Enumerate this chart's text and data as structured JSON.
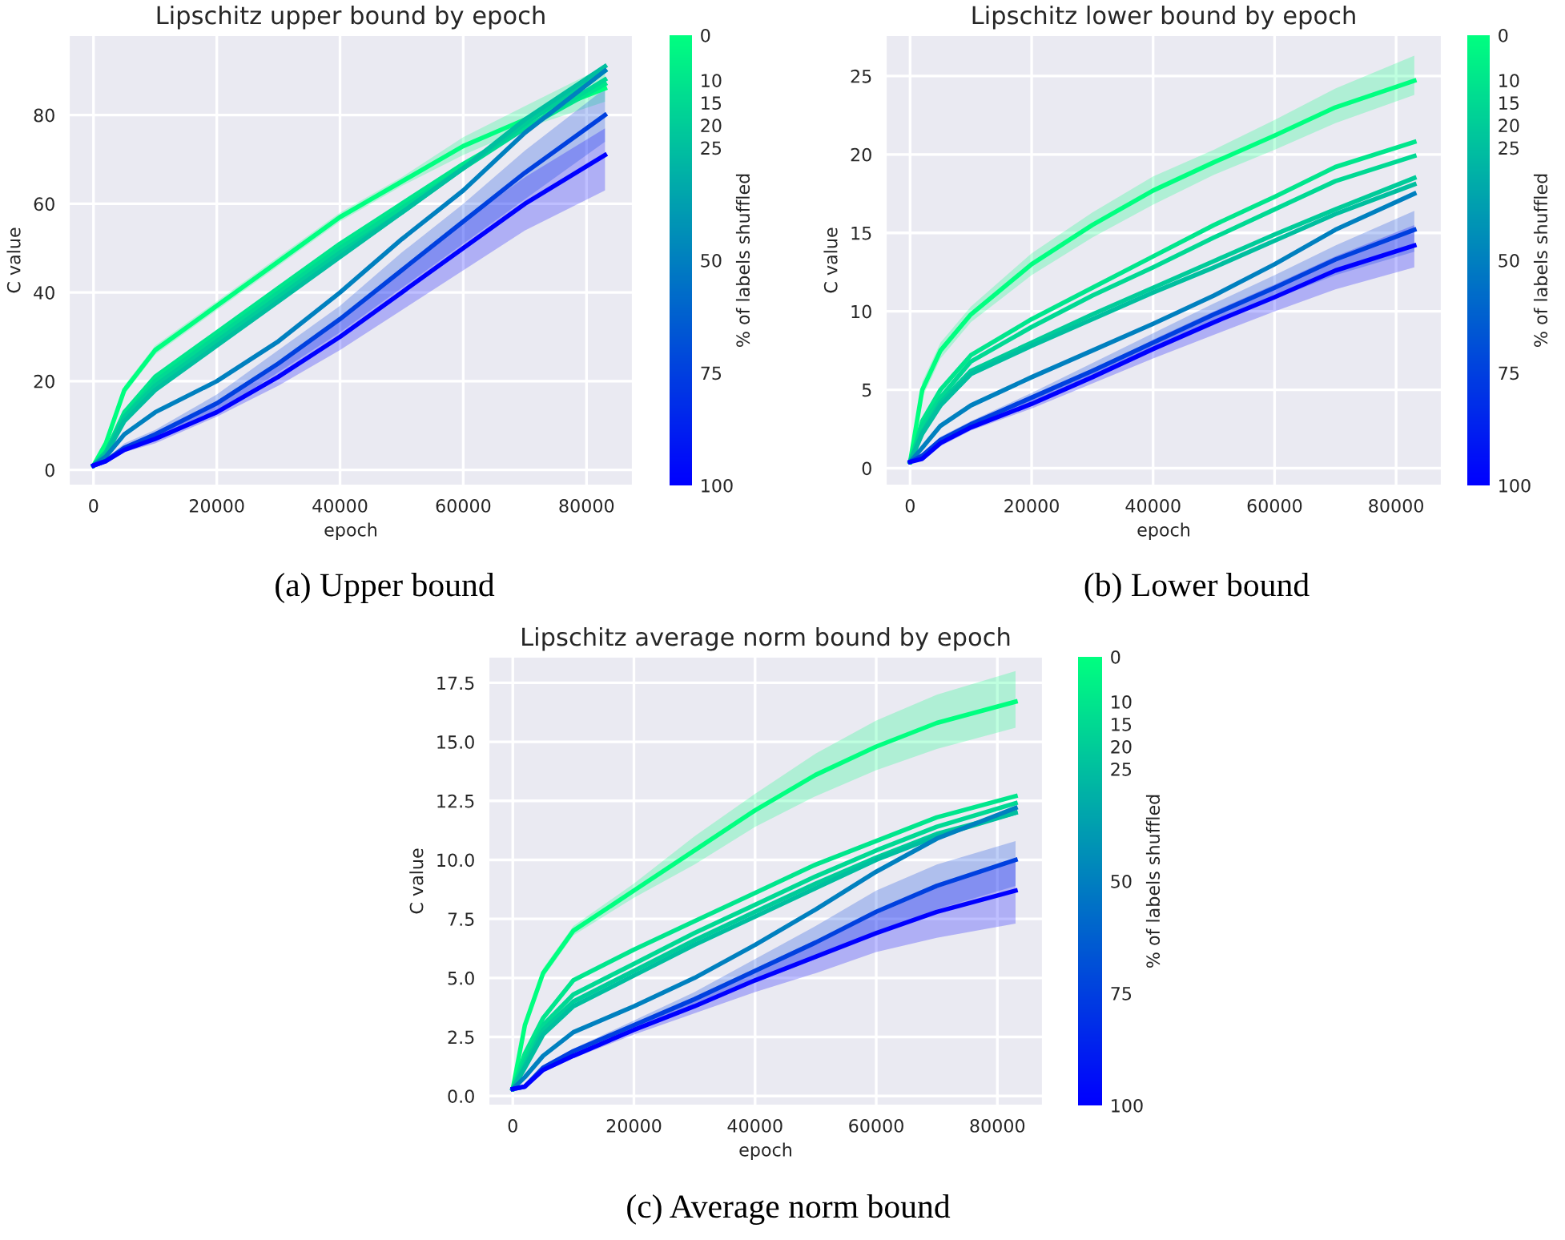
{
  "chart_data": [
    {
      "type": "line",
      "title": "Lipschitz upper bound by epoch",
      "xlabel": "epoch",
      "ylabel": "C value",
      "clabel": "% of labels shuffled",
      "clim": [
        0,
        100
      ],
      "cticks": [
        0,
        10,
        15,
        20,
        25,
        50,
        75,
        100
      ],
      "xlim": [
        -4000,
        87500
      ],
      "ylim": [
        -3.5,
        98
      ],
      "xticks": [
        0,
        20000,
        40000,
        60000,
        80000
      ],
      "yticks": [
        0,
        20,
        40,
        60,
        80
      ],
      "grid": true,
      "annotations": [
        "(a) Upper bound"
      ],
      "x": [
        0,
        2000,
        5000,
        10000,
        20000,
        30000,
        40000,
        50000,
        60000,
        70000,
        83000
      ],
      "series": [
        {
          "color": "#00ff80",
          "values": [
            1,
            6,
            18,
            27,
            37,
            47,
            57,
            65,
            73,
            79,
            86
          ],
          "lower": [
            1,
            5,
            17,
            26,
            36,
            46,
            56,
            64,
            71,
            77,
            83
          ],
          "upper": [
            1,
            7,
            19,
            28,
            38,
            48,
            58,
            66,
            75,
            82,
            91
          ]
        },
        {
          "color": "#00e68c",
          "values": [
            1,
            4,
            13,
            21,
            31,
            41,
            51,
            60,
            69,
            77,
            87
          ]
        },
        {
          "color": "#00d993",
          "values": [
            1,
            4,
            12,
            20,
            30,
            40,
            50,
            59,
            68,
            77,
            88
          ]
        },
        {
          "color": "#00cc99",
          "values": [
            1,
            4,
            12,
            19,
            29,
            39,
            49,
            58,
            68,
            78,
            90
          ]
        },
        {
          "color": "#00bf9f",
          "values": [
            1,
            3.5,
            11,
            18,
            28,
            38,
            48,
            58,
            68,
            79,
            91
          ]
        },
        {
          "color": "#0080bf",
          "values": [
            1,
            3,
            8,
            13,
            20,
            29,
            40,
            52,
            63,
            76,
            90
          ]
        },
        {
          "color": "#0040df",
          "values": [
            1,
            2,
            5,
            8,
            15,
            24,
            34,
            45,
            56,
            67,
            80
          ],
          "lower": [
            1,
            1.5,
            4.5,
            7,
            13,
            22,
            31,
            41,
            51,
            61,
            74
          ],
          "upper": [
            1,
            2.5,
            6,
            9,
            17,
            27,
            37,
            49,
            60,
            72,
            86
          ]
        },
        {
          "color": "#0000ff",
          "values": [
            1,
            2,
            4.5,
            7,
            13,
            21,
            30,
            40,
            50,
            60,
            71
          ],
          "lower": [
            1,
            1.5,
            4,
            6,
            12,
            19,
            27,
            36,
            45,
            54,
            63
          ],
          "upper": [
            1,
            2.5,
            5.5,
            8.5,
            15,
            24,
            34,
            45,
            56,
            66,
            77
          ]
        }
      ]
    },
    {
      "type": "line",
      "title": "Lipschitz lower bound by epoch",
      "xlabel": "epoch",
      "ylabel": "C value",
      "clabel": "% of labels shuffled",
      "clim": [
        0,
        100
      ],
      "cticks": [
        0,
        10,
        15,
        20,
        25,
        50,
        75,
        100
      ],
      "xlim": [
        -4000,
        87500
      ],
      "ylim": [
        -1.1,
        27.6
      ],
      "xticks": [
        0,
        20000,
        40000,
        60000,
        80000
      ],
      "yticks": [
        0,
        5,
        10,
        15,
        20,
        25
      ],
      "grid": true,
      "annotations": [
        "(b) Lower bound"
      ],
      "x": [
        0,
        2000,
        5000,
        10000,
        20000,
        30000,
        40000,
        50000,
        60000,
        70000,
        83000
      ],
      "series": [
        {
          "color": "#00ff80",
          "values": [
            0.4,
            5,
            7.5,
            9.8,
            13,
            15.5,
            17.7,
            19.5,
            21.2,
            23,
            24.7
          ],
          "lower": [
            0.4,
            4.5,
            7,
            9.3,
            12.3,
            14.7,
            16.8,
            18.7,
            20.3,
            22,
            23.8
          ],
          "upper": [
            0.4,
            5.5,
            8,
            10.3,
            13.7,
            16.3,
            18.6,
            20.3,
            22.2,
            24.2,
            26.3
          ]
        },
        {
          "color": "#00e68c",
          "values": [
            0.4,
            3,
            5,
            7.2,
            9.5,
            11.5,
            13.5,
            15.5,
            17.3,
            19.2,
            20.8
          ]
        },
        {
          "color": "#00d993",
          "values": [
            0.4,
            2.7,
            4.5,
            6.8,
            9,
            11,
            12.8,
            14.7,
            16.5,
            18.3,
            19.9
          ]
        },
        {
          "color": "#00cc99",
          "values": [
            0.4,
            2.3,
            4.2,
            6.2,
            8,
            9.8,
            11.5,
            13.2,
            14.9,
            16.5,
            18.5
          ]
        },
        {
          "color": "#00bf9f",
          "values": [
            0.4,
            2.2,
            4,
            6,
            7.8,
            9.5,
            11.2,
            12.8,
            14.5,
            16.2,
            18.1
          ]
        },
        {
          "color": "#0080bf",
          "values": [
            0.4,
            1.3,
            2.7,
            4,
            5.8,
            7.5,
            9.2,
            11,
            13,
            15.2,
            17.5
          ]
        },
        {
          "color": "#0040df",
          "values": [
            0.4,
            0.8,
            1.8,
            2.8,
            4.5,
            6.2,
            8,
            9.8,
            11.5,
            13.3,
            15.2
          ],
          "lower": [
            0.4,
            0.7,
            1.6,
            2.6,
            4.2,
            5.8,
            7.5,
            9.2,
            10.8,
            12.3,
            13.8
          ],
          "upper": [
            0.4,
            0.9,
            2,
            3,
            4.8,
            6.7,
            8.6,
            10.5,
            12.3,
            14.2,
            16.4
          ]
        },
        {
          "color": "#0000ff",
          "values": [
            0.4,
            0.6,
            1.6,
            2.6,
            4.1,
            5.8,
            7.6,
            9.3,
            10.9,
            12.6,
            14.2
          ],
          "lower": [
            0.4,
            0.5,
            1.4,
            2.4,
            3.8,
            5.4,
            7,
            8.5,
            10,
            11.4,
            12.8
          ],
          "upper": [
            0.4,
            0.7,
            1.8,
            2.8,
            4.4,
            6.2,
            8.2,
            10,
            11.7,
            13.5,
            15.5
          ]
        }
      ]
    },
    {
      "type": "line",
      "title": "Lipschitz average norm bound by epoch",
      "xlabel": "epoch",
      "ylabel": "C value",
      "clabel": "% of labels shuffled",
      "clim": [
        0,
        100
      ],
      "cticks": [
        0,
        10,
        15,
        20,
        25,
        50,
        75,
        100
      ],
      "xlim": [
        -4000,
        87500
      ],
      "ylim": [
        -0.4,
        18.6
      ],
      "xticks": [
        0,
        20000,
        40000,
        60000,
        80000
      ],
      "yticks": [
        {
          "value": 0,
          "label": "0.0"
        },
        2.5,
        {
          "value": 5,
          "label": "5.0"
        },
        7.5,
        {
          "value": 10,
          "label": "10.0"
        },
        12.5,
        {
          "value": 15,
          "label": "15.0"
        },
        17.5
      ],
      "grid": true,
      "annotations": [
        "(c) Average norm bound"
      ],
      "x": [
        0,
        2000,
        5000,
        10000,
        20000,
        30000,
        40000,
        50000,
        60000,
        70000,
        83000
      ],
      "series": [
        {
          "color": "#00ff80",
          "values": [
            0.3,
            3,
            5.2,
            7,
            8.7,
            10.4,
            12.1,
            13.6,
            14.8,
            15.8,
            16.7
          ],
          "lower": [
            0.3,
            2.8,
            5,
            6.8,
            8.4,
            9.8,
            11.4,
            12.7,
            13.8,
            14.7,
            15.6
          ],
          "upper": [
            0.3,
            3.2,
            5.4,
            7.2,
            9,
            11,
            12.8,
            14.5,
            15.9,
            17,
            18
          ]
        },
        {
          "color": "#00e68c",
          "values": [
            0.3,
            1.8,
            3.3,
            4.9,
            6.2,
            7.4,
            8.6,
            9.8,
            10.8,
            11.8,
            12.7
          ]
        },
        {
          "color": "#00d993",
          "values": [
            0.3,
            1.5,
            3,
            4.3,
            5.6,
            6.9,
            8.1,
            9.3,
            10.4,
            11.4,
            12.4
          ]
        },
        {
          "color": "#00cc99",
          "values": [
            0.3,
            1.3,
            2.8,
            4,
            5.3,
            6.6,
            7.8,
            9,
            10.1,
            11.1,
            12
          ]
        },
        {
          "color": "#00bf9f",
          "values": [
            0.3,
            1.2,
            2.6,
            3.8,
            5.1,
            6.4,
            7.6,
            8.8,
            10,
            11,
            12
          ]
        },
        {
          "color": "#0080bf",
          "values": [
            0.3,
            0.8,
            1.7,
            2.7,
            3.8,
            5,
            6.4,
            7.9,
            9.5,
            10.9,
            12.2
          ]
        },
        {
          "color": "#0040df",
          "values": [
            0.3,
            0.4,
            1.2,
            1.9,
            3,
            4.1,
            5.3,
            6.5,
            7.8,
            8.9,
            10
          ],
          "lower": [
            0.3,
            0.35,
            1.1,
            1.8,
            2.8,
            3.8,
            4.8,
            5.8,
            6.9,
            7.9,
            8.9
          ],
          "upper": [
            0.3,
            0.45,
            1.3,
            2,
            3.2,
            4.4,
            5.8,
            7.2,
            8.7,
            9.8,
            10.8
          ]
        },
        {
          "color": "#0000ff",
          "values": [
            0.3,
            0.4,
            1.1,
            1.7,
            2.8,
            3.8,
            4.9,
            5.9,
            6.9,
            7.8,
            8.7
          ],
          "lower": [
            0.3,
            0.35,
            1,
            1.6,
            2.6,
            3.5,
            4.4,
            5.2,
            6.1,
            6.7,
            7.3
          ],
          "upper": [
            0.3,
            0.45,
            1.2,
            1.8,
            3,
            4.1,
            5.4,
            6.6,
            7.7,
            8.8,
            10
          ]
        }
      ]
    }
  ]
}
